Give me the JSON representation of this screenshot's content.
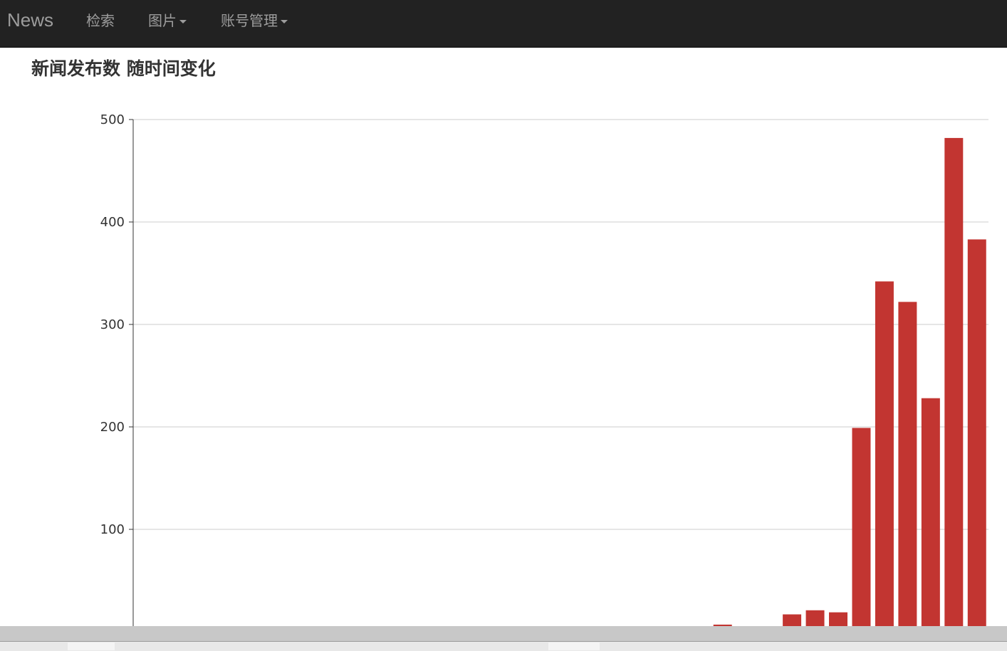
{
  "navbar": {
    "brand": "News",
    "items": [
      {
        "label": "检索",
        "dropdown": false
      },
      {
        "label": "图片",
        "dropdown": true
      },
      {
        "label": "账号管理",
        "dropdown": true
      }
    ]
  },
  "colors": {
    "navbar_bg": "#222222",
    "nav_text": "#9d9d9d",
    "bar": "#c23531",
    "grid": "#cccccc",
    "axis": "#333333"
  },
  "chart_data": {
    "type": "bar",
    "title": "新闻发布数 随时间变化",
    "xlabel": "",
    "ylabel": "",
    "ylim": [
      0,
      500
    ],
    "yticks": [
      100,
      200,
      300,
      400,
      500
    ],
    "grid": true,
    "values": [
      0,
      0,
      0,
      0,
      0,
      0,
      0,
      1,
      0,
      0,
      0,
      0,
      0,
      0,
      0,
      0,
      0,
      0,
      0,
      0,
      0,
      0,
      0,
      2,
      0,
      7,
      0,
      3,
      17,
      21,
      19,
      199,
      342,
      322,
      228,
      482,
      383
    ]
  }
}
